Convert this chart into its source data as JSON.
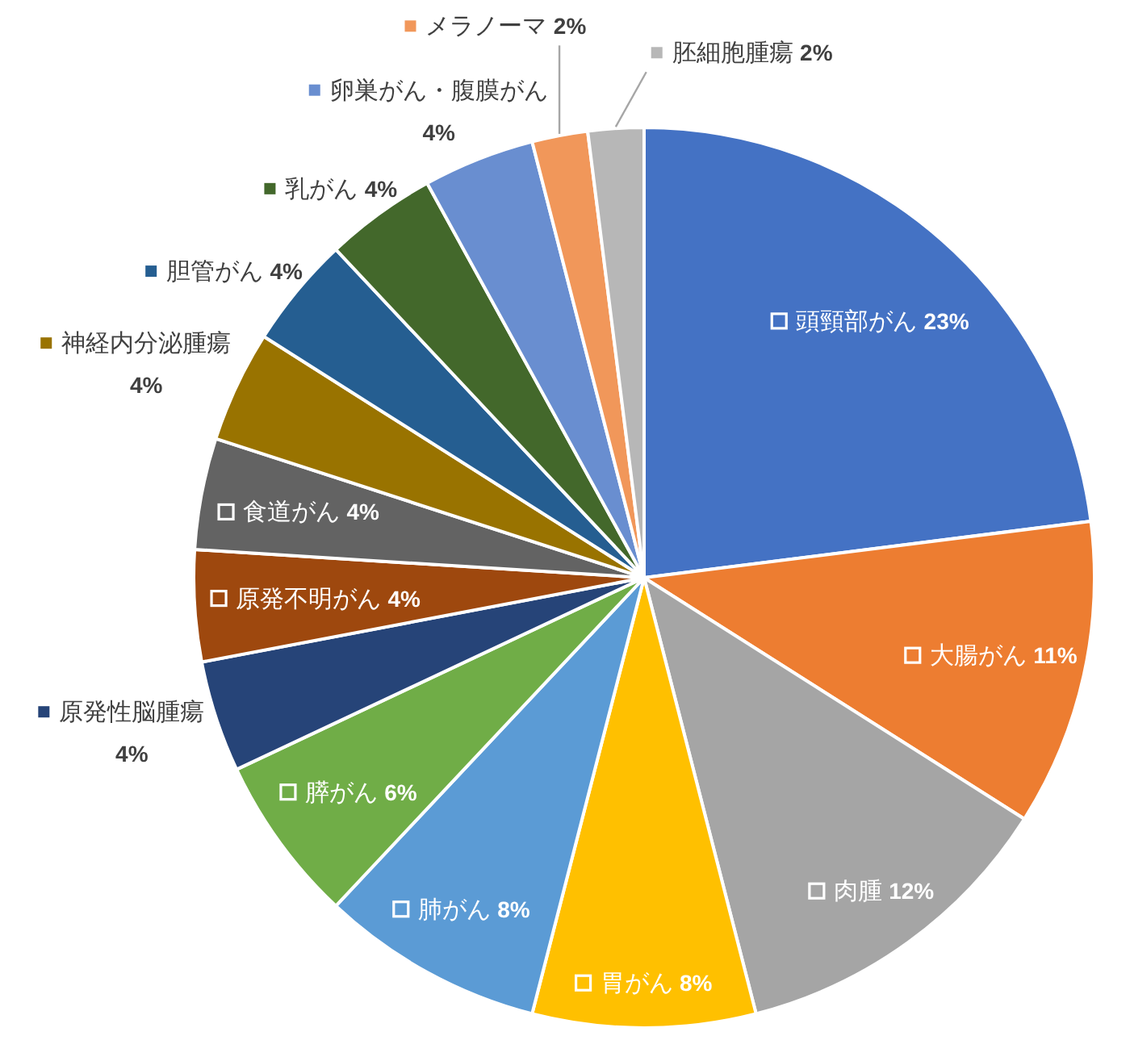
{
  "chart_data": {
    "type": "pie",
    "categories": [
      "頭頸部がん",
      "大腸がん",
      "肉腫",
      "胃がん",
      "肺がん",
      "膵がん",
      "原発性脳腫瘍",
      "原発不明がん",
      "食道がん",
      "神経内分泌腫瘍",
      "胆管がん",
      "乳がん",
      "卵巣がん・腹膜がん",
      "メラノーマ",
      "胚細胞腫瘍"
    ],
    "values": [
      23,
      11,
      12,
      8,
      8,
      6,
      4,
      4,
      4,
      4,
      4,
      4,
      4,
      2,
      2
    ],
    "value_labels": [
      "23%",
      "11%",
      "12%",
      "8%",
      "8%",
      "6%",
      "4%",
      "4%",
      "4%",
      "4%",
      "4%",
      "4%",
      "4%",
      "2%",
      "2%"
    ],
    "colors": [
      "#4472c4",
      "#ed7d31",
      "#a5a5a5",
      "#ffc000",
      "#5b9bd5",
      "#70ad47",
      "#264478",
      "#9e480e",
      "#636363",
      "#997300",
      "#255e91",
      "#43682b",
      "#698ed0",
      "#f1975a",
      "#b7b7b7"
    ],
    "legend": "top left"
  }
}
